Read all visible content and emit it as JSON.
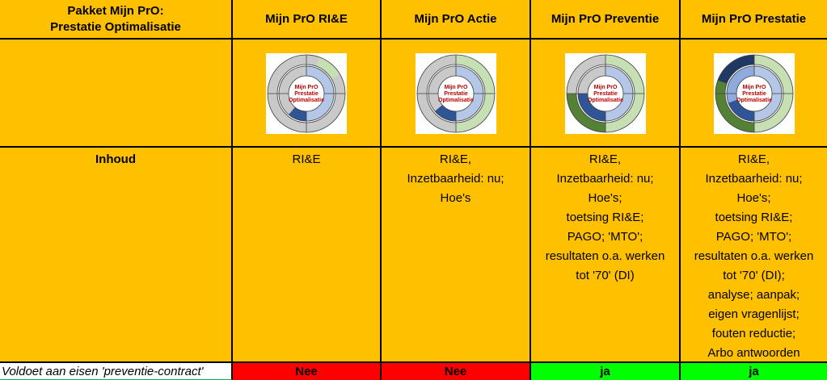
{
  "table": {
    "header": [
      "Pakket Mijn PrO:\nPrestatie Optimalisatie",
      "Mijn PrO RI&E",
      "Mijn PrO Actie",
      "Mijn PrO Preventie",
      "Mijn PrO Prestatie"
    ],
    "icon_label": [
      "Mijn PrO",
      "Prestatie",
      "Optimalisatie"
    ],
    "content_label": "Inhoud",
    "contents": [
      [
        "RI&E"
      ],
      [
        "RI&E,",
        "Inzetbaarheid: nu;",
        "Hoe's"
      ],
      [
        "RI&E,",
        "Inzetbaarheid: nu;",
        "Hoe's;",
        "toetsing RI&E;",
        "PAGO; 'MTO';",
        "resultaten o.a. werken",
        "tot '70' (DI)"
      ],
      [
        "RI&E,",
        "Inzetbaarheid: nu;",
        "Hoe's;",
        "toetsing RI&E;",
        "PAGO; 'MTO';",
        "resultaten o.a. werken",
        "tot '70' (DI);",
        "analyse; aanpak;",
        "eigen vragenlijst;",
        "fouten reductie;",
        "Arbo antwoorden"
      ]
    ],
    "footer_label": "Voldoet aan eisen 'preventie-contract'",
    "footer": [
      "Nee",
      "Nee",
      "ja",
      "ja"
    ]
  }
}
